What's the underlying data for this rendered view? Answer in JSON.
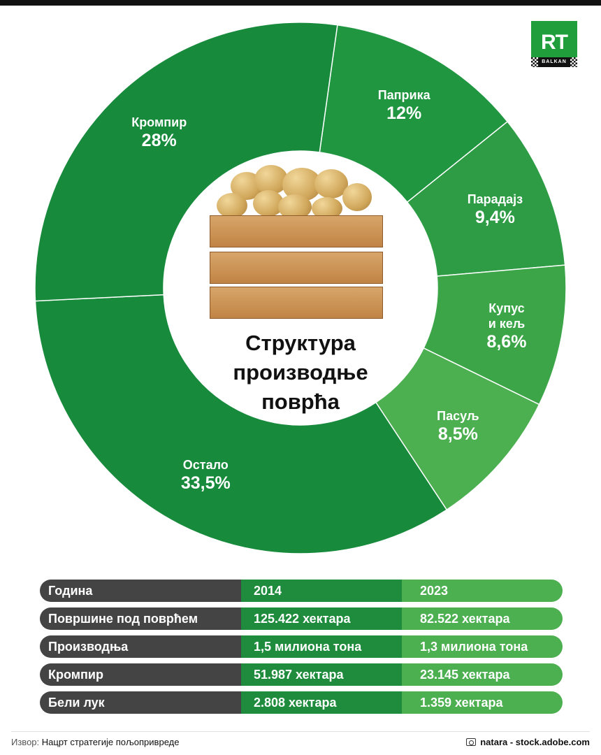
{
  "brand": {
    "logo_text": "RT",
    "logo_sub": "BALKAN",
    "color": "#1f9e3b"
  },
  "chart_data": {
    "type": "pie",
    "title": "Структура производње поврћа",
    "title_lines": [
      "Структура",
      "производње",
      "поврћа"
    ],
    "slices": [
      {
        "label": "Паприка",
        "label_lines": [
          "Паприка"
        ],
        "value": 12,
        "display": "12%",
        "color": "#219641"
      },
      {
        "label": "Парадајз",
        "label_lines": [
          "Парадајз"
        ],
        "value": 9.4,
        "display": "9,4%",
        "color": "#2d9c44"
      },
      {
        "label": "Купус и кељ",
        "label_lines": [
          "Купус",
          "и кељ"
        ],
        "value": 8.6,
        "display": "8,6%",
        "color": "#3ba548"
      },
      {
        "label": "Пасуљ",
        "label_lines": [
          "Пасуљ"
        ],
        "value": 8.5,
        "display": "8,5%",
        "color": "#4caf50"
      },
      {
        "label": "Остало",
        "label_lines": [
          "Остало"
        ],
        "value": 33.5,
        "display": "33,5%",
        "color": "#178a3c"
      },
      {
        "label": "Кромпир",
        "label_lines": [
          "Кромпир"
        ],
        "value": 28,
        "display": "28%",
        "color": "#178a3c"
      }
    ]
  },
  "table": {
    "rows": [
      {
        "head": "Година",
        "v2014": "2014",
        "v2023": "2023"
      },
      {
        "head": "Површине под поврћем",
        "v2014": "125.422 хектара",
        "v2023": "82.522 хектара"
      },
      {
        "head": "Производња",
        "v2014": "1,5 милиона тона",
        "v2023": "1,3 милиона тона"
      },
      {
        "head": "Кромпир",
        "v2014": "51.987 хектара",
        "v2023": "23.145 хектара"
      },
      {
        "head": "Бели лук",
        "v2014": "2.808 хектара",
        "v2023": "1.359 хектара"
      }
    ]
  },
  "footer": {
    "source_label": "Извор:",
    "source_text": "Нацрт стратегије пољопривреде",
    "credit": "natara - stock.adobe.com",
    "camera_icon": "camera-icon"
  }
}
